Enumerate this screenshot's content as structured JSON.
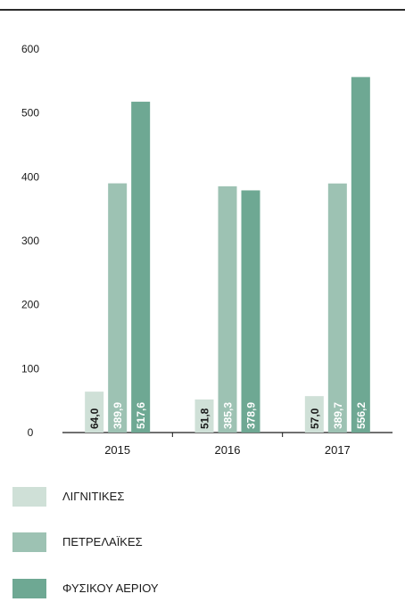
{
  "chart_data": {
    "type": "bar",
    "categories": [
      "2015",
      "2016",
      "2017"
    ],
    "series": [
      {
        "name": "ΛΙΓΝΙΤΙΚΕΣ",
        "values": [
          64.0,
          51.8,
          57.0
        ],
        "labels": [
          "64,0",
          "51,8",
          "57,0"
        ],
        "color": "#cfe0d7",
        "label_color": "#1a1a1a"
      },
      {
        "name": "ΠΕΤΡΕΛΑΪΚΕΣ",
        "values": [
          389.9,
          385.3,
          389.7
        ],
        "labels": [
          "389,9",
          "385,3",
          "389,7"
        ],
        "color": "#9dc2b3",
        "label_color": "#ffffff"
      },
      {
        "name": "ΦΥΣΙΚΟΥ ΑΕΡΙΟΥ",
        "values": [
          517.6,
          378.9,
          556.2
        ],
        "labels": [
          "517,6",
          "378,9",
          "556,2"
        ],
        "color": "#6ea893",
        "label_color": "#ffffff"
      }
    ],
    "yticks": [
      0,
      100,
      200,
      300,
      400,
      500,
      600
    ],
    "ylim": [
      0,
      600
    ],
    "title": "",
    "xlabel": "",
    "ylabel": "",
    "grid": false,
    "legend_position": "bottom"
  },
  "legend": [
    {
      "label": "ΛΙΓΝΙΤΙΚΕΣ",
      "color": "#cfe0d7"
    },
    {
      "label": "ΠΕΤΡΕΛΑΪΚΕΣ",
      "color": "#9dc2b3"
    },
    {
      "label": "ΦΥΣΙΚΟΥ ΑΕΡΙΟΥ",
      "color": "#6ea893"
    }
  ]
}
